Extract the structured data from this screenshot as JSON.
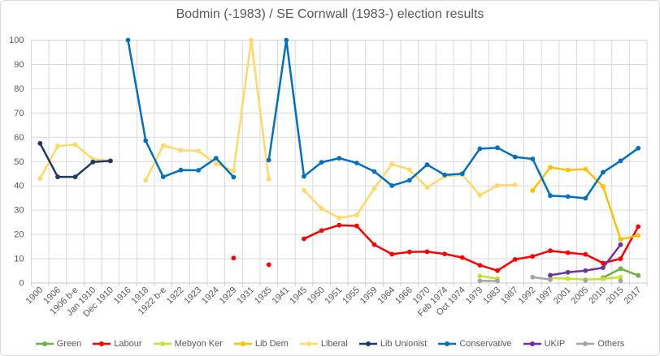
{
  "chart_data": {
    "type": "line",
    "title": "Bodmin (-1983) / SE Cornwall (1983-) election results",
    "xlabel": "",
    "ylabel": "",
    "ylim": [
      0,
      100
    ],
    "ytick_step": 10,
    "grid": true,
    "legend_position": "bottom",
    "categories": [
      "1900",
      "1906",
      "1906 b-e",
      "Jan 1910",
      "Dec 1910",
      "1916",
      "1918",
      "1922 b-e",
      "1922",
      "1923",
      "1924",
      "1929",
      "1931",
      "1935",
      "1941",
      "1945",
      "1950",
      "1951",
      "1955",
      "1959",
      "1964",
      "1966",
      "1970",
      "Feb 1974",
      "Oct 1974",
      "1979",
      "1983",
      "1987",
      "1992",
      "1997",
      "2001",
      "2005",
      "2010",
      "2015",
      "2017"
    ],
    "series": [
      {
        "name": "Green",
        "color": "#70AD47",
        "values": [
          null,
          null,
          null,
          null,
          null,
          null,
          null,
          null,
          null,
          null,
          null,
          null,
          null,
          null,
          null,
          null,
          null,
          null,
          null,
          null,
          null,
          null,
          null,
          null,
          null,
          null,
          null,
          null,
          null,
          null,
          null,
          null,
          2.2,
          5.9,
          3.1
        ]
      },
      {
        "name": "Labour",
        "color": "#FF0000",
        "values": [
          null,
          null,
          null,
          null,
          null,
          null,
          null,
          null,
          null,
          null,
          null,
          10.3,
          null,
          7.5,
          null,
          18.2,
          21.6,
          23.8,
          23.5,
          15.8,
          11.9,
          12.8,
          12.9,
          12,
          10.5,
          7.3,
          5.1,
          9.7,
          11,
          13.3,
          12.5,
          11.8,
          8.2,
          10,
          23.2
        ]
      },
      {
        "name": "Mebyon Ker",
        "color": "#C6E22E",
        "values": [
          null,
          null,
          null,
          null,
          null,
          null,
          null,
          null,
          null,
          null,
          null,
          null,
          null,
          null,
          null,
          null,
          null,
          null,
          null,
          null,
          null,
          null,
          null,
          null,
          null,
          2.9,
          1.8,
          null,
          null,
          2,
          1.8,
          1.4,
          1.7,
          2.4,
          null
        ]
      },
      {
        "name": "Lib Dem",
        "color": "#FFC000",
        "values": [
          null,
          null,
          null,
          null,
          null,
          null,
          null,
          null,
          null,
          null,
          null,
          null,
          null,
          null,
          null,
          null,
          null,
          null,
          null,
          null,
          null,
          null,
          null,
          null,
          null,
          null,
          null,
          null,
          38.1,
          47.6,
          46.5,
          46.9,
          39.8,
          18,
          19.6
        ]
      },
      {
        "name": "Liberal",
        "color": "#FFD966",
        "values": [
          43,
          56.4,
          57,
          51,
          50.4,
          null,
          42.3,
          56.6,
          54.7,
          54.4,
          49.1,
          46.1,
          100,
          42.8,
          null,
          38.2,
          30.7,
          26.8,
          27.9,
          39,
          48.9,
          46.7,
          39.3,
          43.9,
          44.5,
          36.2,
          40.1,
          40.4,
          null,
          null,
          null,
          null,
          null,
          null,
          null
        ]
      },
      {
        "name": "Lib Unionist",
        "color": "#1F3864",
        "values": [
          57.5,
          43.7,
          43.7,
          49.8,
          50.3,
          null,
          null,
          null,
          null,
          null,
          null,
          null,
          null,
          null,
          null,
          null,
          null,
          null,
          null,
          null,
          null,
          null,
          null,
          null,
          null,
          null,
          null,
          null,
          null,
          null,
          null,
          null,
          null,
          null,
          null
        ]
      },
      {
        "name": "Conservative",
        "color": "#0070C0",
        "values": [
          null,
          null,
          null,
          null,
          null,
          100,
          58.6,
          43.7,
          46.5,
          46.4,
          51.4,
          43.6,
          null,
          50.6,
          100,
          43.9,
          49.7,
          51.4,
          49.4,
          45.9,
          40.1,
          42.3,
          48.7,
          44.5,
          45,
          55.3,
          55.7,
          51.9,
          51.1,
          36,
          35.6,
          34.9,
          45.6,
          50.3,
          55.5
        ]
      },
      {
        "name": "UKIP",
        "color": "#7030A0",
        "values": [
          null,
          null,
          null,
          null,
          null,
          null,
          null,
          null,
          null,
          null,
          null,
          null,
          null,
          null,
          null,
          null,
          null,
          null,
          null,
          null,
          null,
          null,
          null,
          null,
          null,
          null,
          null,
          null,
          null,
          3.2,
          4.4,
          5.1,
          6.3,
          15.8,
          null
        ]
      },
      {
        "name": "Others",
        "color": "#A5A5A5",
        "values": [
          null,
          null,
          null,
          null,
          null,
          null,
          null,
          null,
          null,
          null,
          null,
          null,
          null,
          null,
          null,
          null,
          null,
          null,
          null,
          null,
          null,
          null,
          null,
          null,
          null,
          0.9,
          0.8,
          null,
          2.4,
          1.4,
          null,
          1.1,
          null,
          0.9,
          null
        ]
      }
    ]
  }
}
